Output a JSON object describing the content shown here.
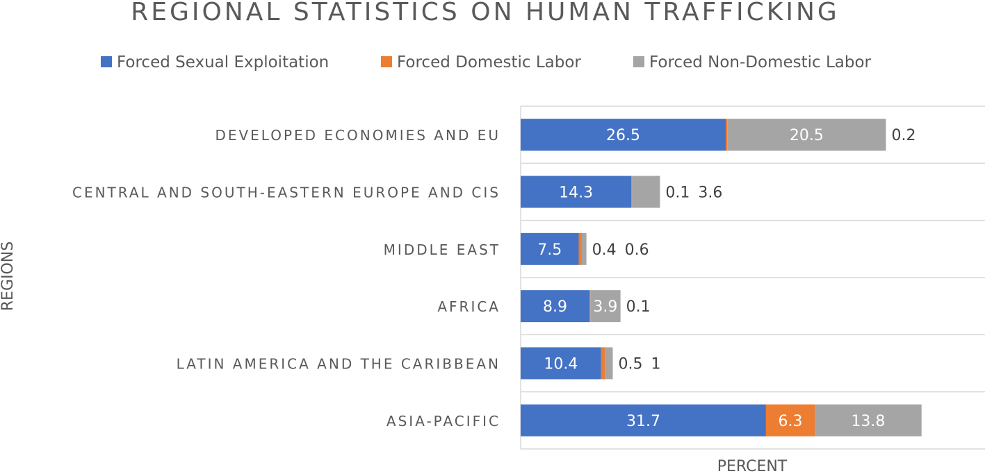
{
  "chart_data": {
    "type": "bar",
    "orientation": "horizontal",
    "stacked": true,
    "title": "REGIONAL STATISTICS ON HUMAN TRAFFICKING",
    "xlabel": "PERCENT",
    "ylabel": "REGIONS",
    "xlim": [
      0,
      60
    ],
    "grid": "horizontal category separators",
    "legend": "top",
    "categories": [
      "DEVELOPED ECONOMIES AND EU",
      "CENTRAL AND SOUTH-EASTERN EUROPE AND CIS",
      "MIDDLE EAST",
      "AFRICA",
      "LATIN AMERICA AND THE CARIBBEAN",
      "ASIA-PACIFIC"
    ],
    "series": [
      {
        "name": "Forced Sexual Exploitation",
        "color": "#4472C4",
        "values": [
          26.5,
          14.3,
          7.5,
          8.9,
          10.4,
          31.7
        ]
      },
      {
        "name": "Forced Domestic Labor",
        "color": "#ED7D31",
        "values": [
          0.2,
          0.1,
          0.4,
          0.1,
          0.5,
          6.3
        ]
      },
      {
        "name": "Forced Non-Domestic Labor",
        "color": "#A5A5A5",
        "values": [
          20.5,
          3.6,
          0.6,
          3.9,
          1.0,
          13.8
        ]
      }
    ]
  }
}
